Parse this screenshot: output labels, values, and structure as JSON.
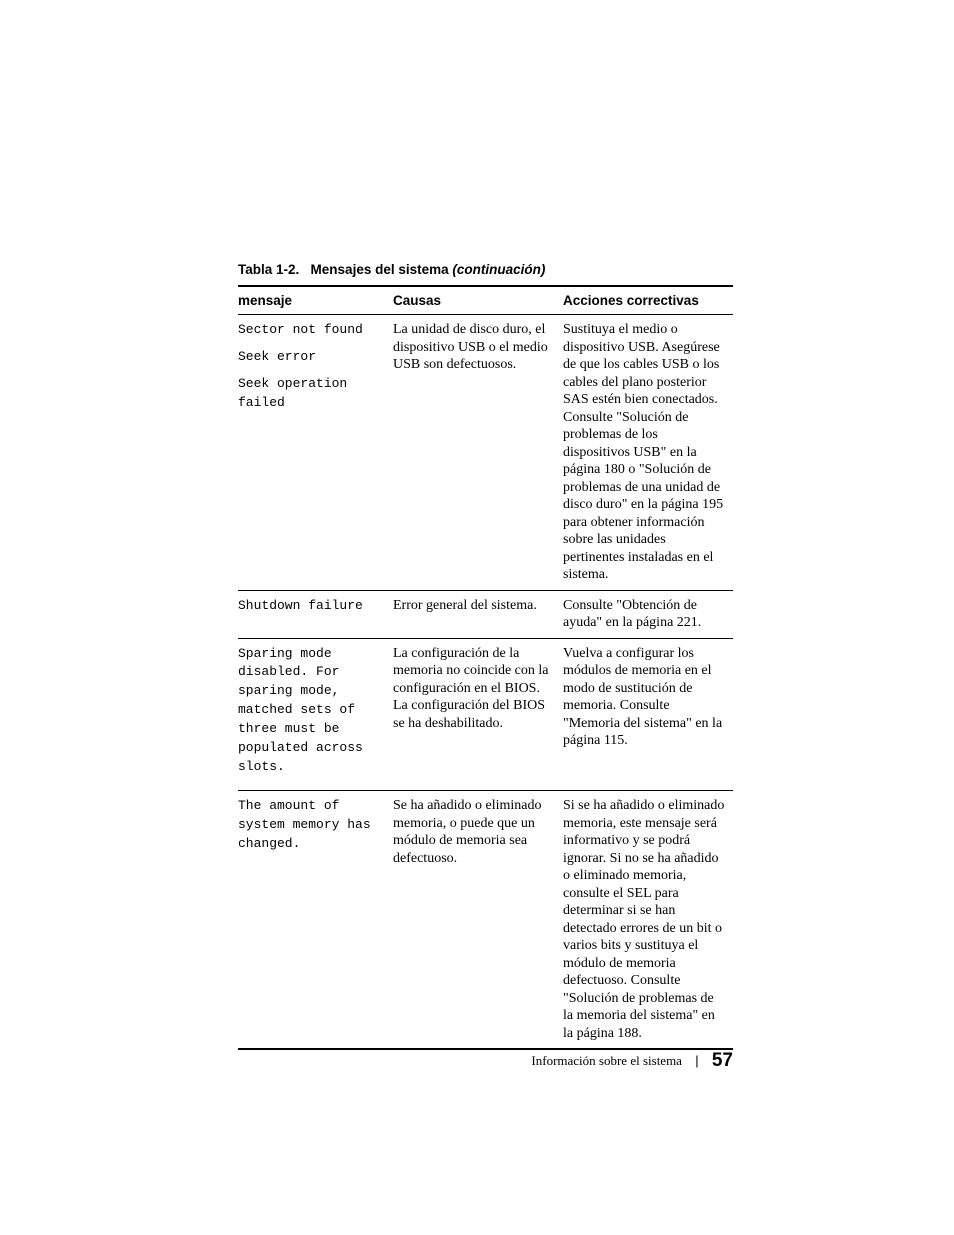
{
  "caption": {
    "label": "Tabla 1-2.",
    "title": "Mensajes del sistema",
    "suffix": "(continuación)"
  },
  "columns": {
    "c1": "mensaje",
    "c2": "Causas",
    "c3": "Acciones correctivas"
  },
  "rows": [
    {
      "messages": [
        "Sector not found",
        "Seek error",
        "Seek operation failed"
      ],
      "cause": "La unidad de disco duro, el dispositivo USB o el medio USB son defectuosos.",
      "action": "Sustituya el medio o dispositivo USB. Asegúrese de que los cables USB o los cables del plano posterior SAS estén bien conectados. Consulte \"Solución de problemas de los dispositivos USB\" en la página 180 o \"Solución de problemas de una unidad de disco duro\" en la página 195 para obtener información sobre las unidades pertinentes instaladas en el sistema."
    },
    {
      "messages": [
        "Shutdown failure"
      ],
      "cause": "Error general del sistema.",
      "action": "Consulte \"Obtención de ayuda\" en la página 221."
    },
    {
      "messages": [
        "Sparing mode disabled. For sparing mode, matched sets of three must be populated across slots."
      ],
      "cause": "La configuración de la memoria no coincide con la configuración en el BIOS. La configuración del BIOS se ha deshabilitado.",
      "action": "Vuelva a configurar los módulos de memoria en el modo de sustitución de memoria. Consulte \"Memoria del sistema\" en la página 115."
    },
    {
      "messages": [
        "The amount of system memory has changed."
      ],
      "cause": "Se ha añadido o eliminado memoria, o puede que un módulo de memoria sea defectuoso.",
      "action": "Si se ha añadido o eliminado memoria, este mensaje será informativo y se podrá ignorar. Si no se ha añadido o eliminado memoria, consulte el SEL para determinar si se han detectado errores de un bit o varios bits y sustituya el módulo de memoria defectuoso. Consulte \"Solución de problemas de la memoria del sistema\" en la página 188."
    }
  ],
  "footer": {
    "section": "Información sobre el sistema",
    "page": "57"
  }
}
